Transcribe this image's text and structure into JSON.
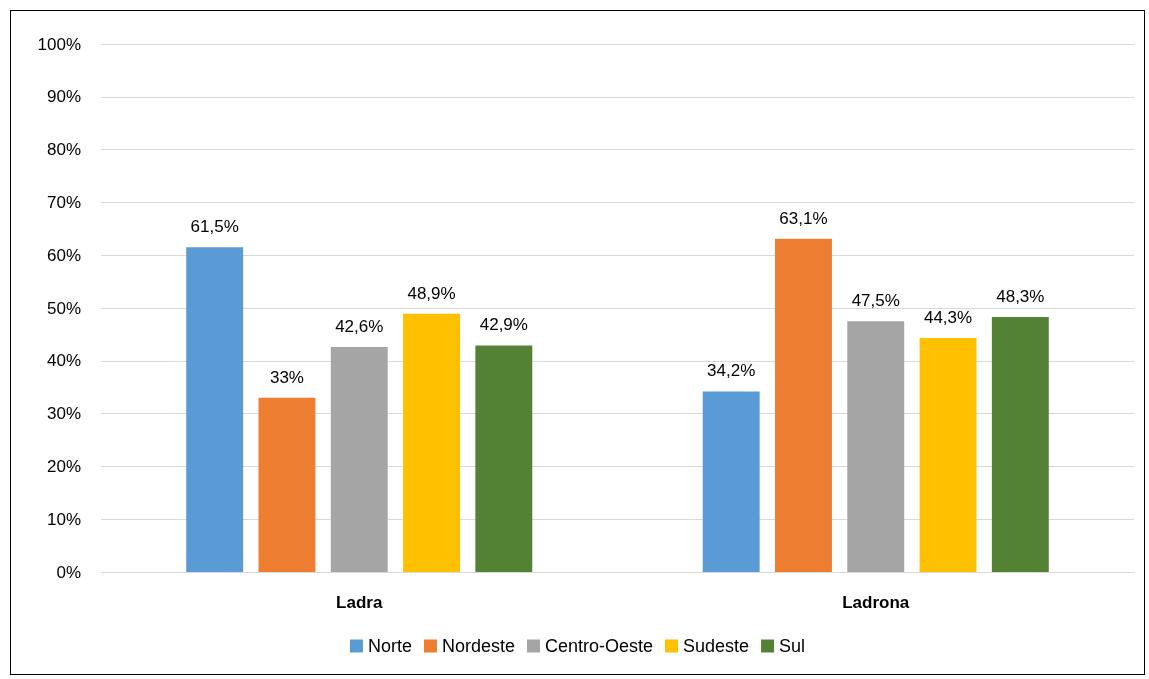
{
  "chart_data": {
    "type": "bar",
    "categories": [
      "Ladra",
      "Ladrona"
    ],
    "series": [
      {
        "name": "Norte",
        "color": "#5b9bd5",
        "values": [
          61.5,
          34.2
        ],
        "value_labels": [
          "61,5%",
          "34,2%"
        ]
      },
      {
        "name": "Nordeste",
        "color": "#ed7d31",
        "values": [
          33,
          63.1
        ],
        "value_labels": [
          "33%",
          "63,1%"
        ]
      },
      {
        "name": "Centro-Oeste",
        "color": "#a5a5a5",
        "values": [
          42.6,
          47.5
        ],
        "value_labels": [
          "42,6%",
          "47,5%"
        ]
      },
      {
        "name": "Sudeste",
        "color": "#ffc000",
        "values": [
          48.9,
          44.3
        ],
        "value_labels": [
          "48,9%",
          "44,3%"
        ]
      },
      {
        "name": "Sul",
        "color": "#548235",
        "values": [
          42.9,
          48.3
        ],
        "value_labels": [
          "42,9%",
          "48,3%"
        ]
      }
    ],
    "ylim": [
      0,
      100
    ],
    "yticks": [
      {
        "value": 0,
        "label": "0%"
      },
      {
        "value": 10,
        "label": "10%"
      },
      {
        "value": 20,
        "label": "20%"
      },
      {
        "value": 30,
        "label": "30%"
      },
      {
        "value": 40,
        "label": "40%"
      },
      {
        "value": 50,
        "label": "50%"
      },
      {
        "value": 60,
        "label": "60%"
      },
      {
        "value": 70,
        "label": "70%"
      },
      {
        "value": 80,
        "label": "80%"
      },
      {
        "value": 90,
        "label": "90%"
      },
      {
        "value": 100,
        "label": "100%"
      }
    ],
    "grid": "y",
    "legend": "bottom"
  }
}
